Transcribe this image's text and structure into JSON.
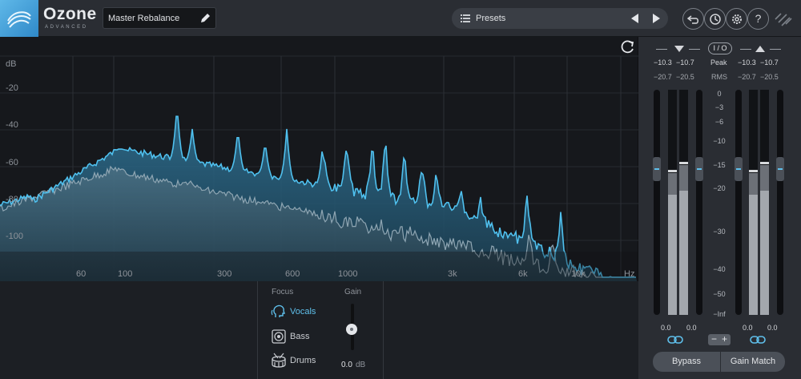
{
  "app": {
    "name": "Ozone",
    "edition": "ADVANCED"
  },
  "header": {
    "module_name": "Master Rebalance",
    "presets_label": "Presets",
    "help_glyph": "?"
  },
  "icons": {
    "logo": "ozone-logo-icon",
    "pencil": "pencil-icon",
    "list": "list-icon",
    "prev": "triangle-left-icon",
    "next": "triangle-right-icon",
    "undo": "undo-icon",
    "history": "history-icon",
    "settings": "gear-icon",
    "help": "help-icon",
    "brand": "izotope-icon",
    "reset": "refresh-icon",
    "vocals": "head-icon",
    "bass": "speaker-icon",
    "drums": "drum-icon",
    "link": "link-icon"
  },
  "spectrum": {
    "db_unit": "dB",
    "db_ticks": [
      "-20",
      "-40",
      "-60",
      "-80",
      "-100"
    ],
    "hz_ticks": [
      "60",
      "100",
      "300",
      "600",
      "1000",
      "3k",
      "6k",
      "10k"
    ],
    "hz_unit": "Hz",
    "colors": {
      "input": "#4fc0ee",
      "output": "#8fa6b3"
    }
  },
  "focus": {
    "header": "Focus",
    "items": [
      {
        "label": "Vocals",
        "selected": true
      },
      {
        "label": "Bass",
        "selected": false
      },
      {
        "label": "Drums",
        "selected": false
      }
    ]
  },
  "gain": {
    "header": "Gain",
    "value": "0.0",
    "unit": "dB"
  },
  "meters": {
    "io_label": "I / O",
    "peak_label": "Peak",
    "rms_label": "RMS",
    "input": {
      "peak_l": "−10.3",
      "peak_r": "−10.7",
      "rms_l": "−20.7",
      "rms_r": "−20.5",
      "trim_l": "0.0",
      "trim_r": "0.0"
    },
    "output": {
      "peak_l": "−10.3",
      "peak_r": "−10.7",
      "rms_l": "−20.7",
      "rms_r": "−20.5",
      "trim_l": "0.0",
      "trim_r": "0.0"
    },
    "scale": [
      "0",
      "−3",
      "−6",
      "−10",
      "−15",
      "−20",
      "−30",
      "−40",
      "−50",
      "−Inf"
    ],
    "link_minus": "−",
    "link_plus": "+"
  },
  "footer": {
    "bypass": "Bypass",
    "gain_match": "Gain Match"
  }
}
